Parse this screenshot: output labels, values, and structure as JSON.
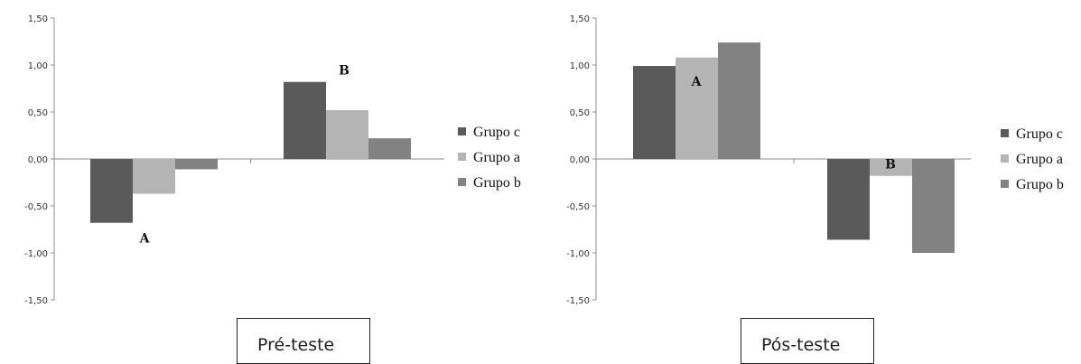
{
  "chart_data": [
    {
      "type": "bar",
      "title": "Pré-teste",
      "categories": [
        "A",
        "B"
      ],
      "series": [
        {
          "name": "Grupo c",
          "values": [
            -0.68,
            0.82
          ],
          "color": "#5a5a5a"
        },
        {
          "name": "Grupo a",
          "values": [
            -0.37,
            0.52
          ],
          "color": "#b4b4b4"
        },
        {
          "name": "Grupo b",
          "values": [
            -0.11,
            0.22
          ],
          "color": "#828282"
        }
      ],
      "category_label_position": [
        "below",
        "above"
      ],
      "ylim": [
        -1.5,
        1.5
      ],
      "yticks": [
        "1,50",
        "1,00",
        "0,50",
        "0,00",
        "-0,50",
        "-1,00",
        "-1,50"
      ],
      "legend_position": "right",
      "grid": false
    },
    {
      "type": "bar",
      "title": "Pós-teste",
      "categories": [
        "A",
        "B"
      ],
      "series": [
        {
          "name": "Grupo c",
          "values": [
            0.99,
            -0.86
          ],
          "color": "#5a5a5a"
        },
        {
          "name": "Grupo a",
          "values": [
            1.08,
            -0.18
          ],
          "color": "#b4b4b4"
        },
        {
          "name": "Grupo b",
          "values": [
            1.24,
            -1.0
          ],
          "color": "#828282"
        }
      ],
      "category_label_position": [
        "below",
        "above"
      ],
      "ylim": [
        -1.5,
        1.5
      ],
      "yticks": [
        "1,50",
        "1,00",
        "0,50",
        "0,00",
        "-0,50",
        "-1,00",
        "-1,50"
      ],
      "legend_position": "right",
      "grid": false
    }
  ]
}
